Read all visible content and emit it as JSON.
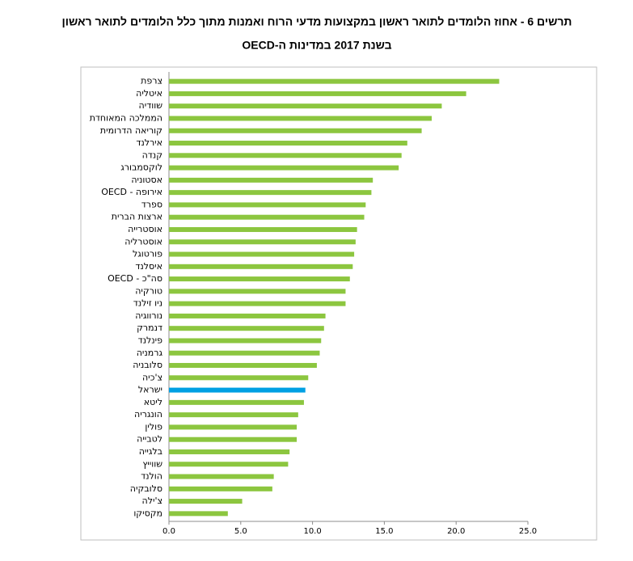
{
  "chart_data": {
    "type": "barh",
    "title": "תרשים 6 - אחוז הלומדים לתואר ראשון במקצועות מדעי הרוח ואמנות מתוך כלל הלומדים לתואר ראשון",
    "subtitle": "בשנת 2017 במדינות ה-OECD",
    "categories": [
      "צרפת",
      "איטליה",
      "שוודיה",
      "הממלכה המאוחדת",
      "קוריאה הדרומית",
      "אירלנד",
      "קנדה",
      "לוקסמבורג",
      "אסטוניה",
      "אירופה - OECD",
      "ספרד",
      "ארצות הברית",
      "אוסטרייה",
      "אוסטרליה",
      "פורטוגל",
      "איסלנד",
      "סה\"כ - OECD",
      "טורקיה",
      "ניו זילנד",
      "נורווגיה",
      "דנמרק",
      "פינלנד",
      "גרמניה",
      "סלובניה",
      "צ'כיה",
      "ישראל",
      "ליטא",
      "הונגריה",
      "פולין",
      "לטבייה",
      "בלגייה",
      "שווייץ",
      "הולנד",
      "סלובקיה",
      "צ'ילה",
      "מקסיקו"
    ],
    "values": [
      23.0,
      20.7,
      19.0,
      18.3,
      17.6,
      16.6,
      16.2,
      16.0,
      14.2,
      14.1,
      13.7,
      13.6,
      13.1,
      13.0,
      12.9,
      12.8,
      12.6,
      12.3,
      12.3,
      10.9,
      10.8,
      10.6,
      10.5,
      10.3,
      9.7,
      9.5,
      9.4,
      9.0,
      8.9,
      8.9,
      8.4,
      8.3,
      7.3,
      7.2,
      5.1,
      4.1
    ],
    "colors": [
      "#8cc63f",
      "#8cc63f",
      "#8cc63f",
      "#8cc63f",
      "#8cc63f",
      "#8cc63f",
      "#8cc63f",
      "#8cc63f",
      "#8cc63f",
      "#8cc63f",
      "#8cc63f",
      "#8cc63f",
      "#8cc63f",
      "#8cc63f",
      "#8cc63f",
      "#8cc63f",
      "#8cc63f",
      "#8cc63f",
      "#8cc63f",
      "#8cc63f",
      "#8cc63f",
      "#8cc63f",
      "#8cc63f",
      "#8cc63f",
      "#8cc63f",
      "#00a0e3",
      "#8cc63f",
      "#8cc63f",
      "#8cc63f",
      "#8cc63f",
      "#8cc63f",
      "#8cc63f",
      "#8cc63f",
      "#8cc63f",
      "#8cc63f",
      "#8cc63f"
    ],
    "xlim": [
      0,
      25
    ],
    "xticks": [
      {
        "value": 0,
        "label": "0.0"
      },
      {
        "value": 5,
        "label": "5.0"
      },
      {
        "value": 10,
        "label": "10.0"
      },
      {
        "value": 15,
        "label": "15.0"
      },
      {
        "value": 20,
        "label": "20.0"
      },
      {
        "value": 25,
        "label": "25.0"
      }
    ],
    "grid": false
  }
}
